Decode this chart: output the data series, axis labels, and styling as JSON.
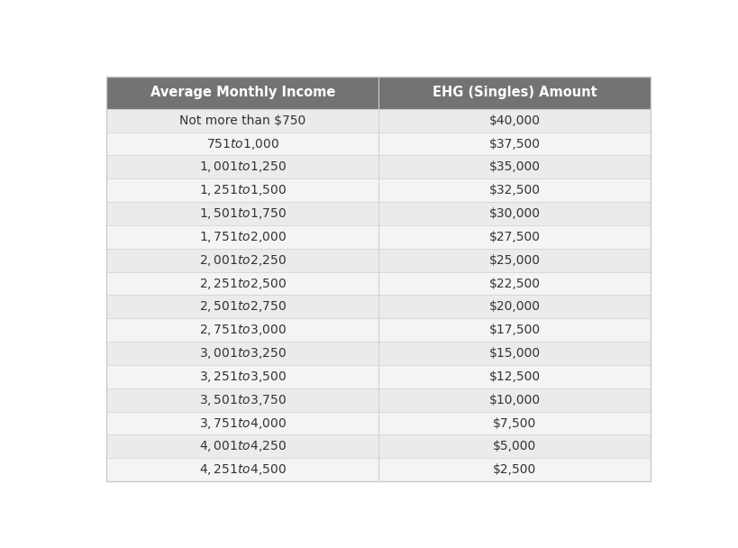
{
  "header": [
    "Average Monthly Income",
    "EHG (Singles) Amount"
  ],
  "rows": [
    [
      "Not more than $750",
      "$40,000"
    ],
    [
      "$751 to $1,000",
      "$37,500"
    ],
    [
      "$1,001 to $1,250",
      "$35,000"
    ],
    [
      "$1,251 to $1,500",
      "$32,500"
    ],
    [
      "$1,501 to $1,750",
      "$30,000"
    ],
    [
      "$1,751 to $2,000",
      "$27,500"
    ],
    [
      "$2,001 to $2,250",
      "$25,000"
    ],
    [
      "$2,251 to $2,500",
      "$22,500"
    ],
    [
      "$2,501 to $2,750",
      "$20,000"
    ],
    [
      "$2,751 to $3,000",
      "$17,500"
    ],
    [
      "$3,001 to $3,250",
      "$15,000"
    ],
    [
      "$3,251 to $3,500",
      "$12,500"
    ],
    [
      "$3,501 to $3,750",
      "$10,000"
    ],
    [
      "$3,751 to $4,000",
      "$7,500"
    ],
    [
      "$4,001 to $4,250",
      "$5,000"
    ],
    [
      "$4,251 to $4,500",
      "$2,500"
    ]
  ],
  "header_bg": "#737373",
  "header_text_color": "#ffffff",
  "row_bg_odd": "#ebebeb",
  "row_bg_even": "#f4f4f4",
  "row_text_color": "#333333",
  "col_split": 0.5,
  "header_fontsize": 10.5,
  "row_fontsize": 10,
  "fig_width": 8.2,
  "fig_height": 6.08,
  "border_color": "#d0d0d0",
  "outer_border_color": "#cccccc"
}
